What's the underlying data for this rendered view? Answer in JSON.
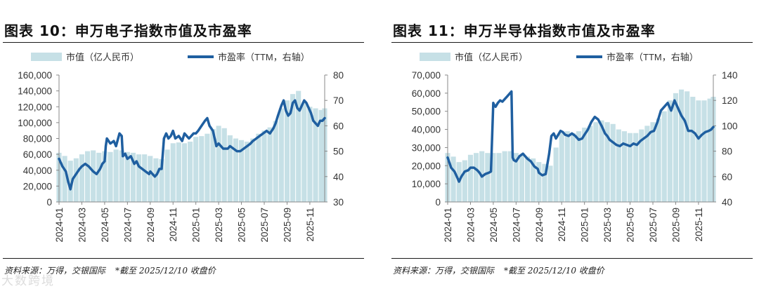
{
  "colors": {
    "bar": "#c6e0e6",
    "line": "#1f5fa0",
    "axis": "#888888",
    "text": "#333333"
  },
  "watermark": "大数跨境",
  "chart_data": [
    {
      "type": "bar+line",
      "title": "图表 10：申万电子指数市值及市盈率",
      "source": "资料来源：万得，交银国际",
      "note": "*截至 2025/12/10 收盘价",
      "legend": [
        "市值（亿人民币）",
        "市盈率（TTM，右轴）"
      ],
      "x_ticks": [
        "2024-01",
        "2024-03",
        "2024-05",
        "2024-07",
        "2024-09",
        "2024-11",
        "2025-01",
        "2025-03",
        "2025-05",
        "2025-07",
        "2025-09",
        "2025-11"
      ],
      "x_range": [
        0,
        23.3
      ],
      "left_axis": {
        "ticks": [
          "0",
          "20,000",
          "40,000",
          "60,000",
          "80,000",
          "100,000",
          "120,000",
          "140,000",
          "160,000"
        ],
        "range": [
          0,
          160000
        ]
      },
      "right_axis": {
        "ticks": [
          "30",
          "40",
          "50",
          "60",
          "70",
          "80"
        ],
        "range": [
          30,
          80
        ]
      },
      "series": [
        {
          "name": "市值（亿人民币）",
          "kind": "bar",
          "x": [
            0,
            0.5,
            1,
            1.5,
            2,
            2.5,
            3,
            3.5,
            4,
            4.5,
            5,
            5.5,
            6,
            6.5,
            7,
            7.5,
            8,
            8.5,
            9,
            9.5,
            10,
            10.5,
            11,
            11.5,
            12,
            12.5,
            13,
            13.5,
            14,
            14.5,
            15,
            15.5,
            16,
            16.5,
            17,
            17.5,
            18,
            18.5,
            19,
            19.5,
            20,
            20.5,
            21,
            21.5,
            22,
            22.5,
            23,
            23.3
          ],
          "values": [
            62000,
            58000,
            52000,
            55000,
            60000,
            64000,
            65000,
            62000,
            64000,
            63000,
            66000,
            65000,
            63000,
            62000,
            60000,
            60000,
            58000,
            55000,
            54000,
            66000,
            74000,
            75000,
            74000,
            76000,
            82000,
            83000,
            86000,
            92000,
            96000,
            93000,
            84000,
            80000,
            78000,
            76000,
            80000,
            86000,
            90000,
            94000,
            102000,
            118000,
            128000,
            136000,
            140000,
            125000,
            120000,
            118000,
            116000,
            118000
          ]
        },
        {
          "name": "市盈率（TTM，右轴）",
          "kind": "line",
          "x": [
            0,
            0.3,
            0.6,
            0.8,
            1.0,
            1.2,
            1.5,
            1.8,
            2.0,
            2.3,
            2.6,
            2.8,
            3.0,
            3.3,
            3.6,
            3.8,
            4.0,
            4.1,
            4.2,
            4.5,
            4.8,
            5.0,
            5.3,
            5.5,
            5.6,
            5.8,
            6.0,
            6.3,
            6.6,
            6.8,
            7.0,
            7.3,
            7.6,
            7.9,
            8.0,
            8.2,
            8.4,
            8.6,
            8.8,
            9.0,
            9.2,
            9.4,
            9.6,
            9.8,
            10.0,
            10.2,
            10.5,
            10.8,
            11.0,
            11.2,
            11.4,
            11.6,
            11.8,
            12.0,
            12.2,
            12.5,
            12.8,
            13.0,
            13.2,
            13.5,
            13.8,
            14.0,
            14.2,
            14.4,
            14.6,
            14.8,
            15.0,
            15.3,
            15.6,
            15.9,
            16.2,
            16.5,
            16.8,
            17.0,
            17.3,
            17.6,
            17.9,
            18.2,
            18.5,
            18.8,
            19.0,
            19.2,
            19.5,
            19.7,
            19.9,
            20.1,
            20.3,
            20.5,
            20.7,
            20.9,
            21.1,
            21.3,
            21.5,
            21.7,
            21.9,
            22.1,
            22.3,
            22.5,
            22.7,
            22.9,
            23.1,
            23.3
          ],
          "values": [
            47,
            44,
            42,
            38,
            35,
            39,
            41,
            43,
            44,
            45,
            44,
            43,
            42,
            41,
            43,
            45,
            46,
            52,
            55,
            53,
            54,
            52,
            57,
            56,
            48,
            49,
            47,
            48,
            45,
            46,
            44,
            43,
            42,
            41,
            42,
            41,
            40,
            41,
            43,
            43,
            55,
            57,
            55,
            56,
            58,
            55,
            56,
            54,
            57,
            56,
            55,
            56,
            57,
            57,
            58,
            60,
            62,
            63,
            60,
            58,
            52,
            53,
            52,
            51,
            51,
            51,
            52,
            51,
            50,
            50,
            51,
            52,
            53,
            54,
            55,
            56,
            57,
            58,
            57,
            59,
            61,
            64,
            68,
            70,
            66,
            64,
            65,
            69,
            70,
            67,
            66,
            68,
            70,
            69,
            67,
            65,
            62,
            61,
            60,
            62,
            62,
            63
          ]
        }
      ]
    },
    {
      "type": "bar+line",
      "title": "图表 11：申万半导体指数市值及市盈率",
      "source": "资料来源：万得，交银国际",
      "note": "*截至 2025/12/10 收盘价",
      "legend": [
        "市值（亿人民币）",
        "市盈率（TTM，右轴）"
      ],
      "x_ticks": [
        "2024-01",
        "2024-03",
        "2024-05",
        "2024-07",
        "2024-09",
        "2024-11",
        "2025-01",
        "2025-03",
        "2025-05",
        "2025-07",
        "2025-09",
        "2025-11"
      ],
      "x_range": [
        0,
        23.3
      ],
      "left_axis": {
        "ticks": [
          "0",
          "10,000",
          "20,000",
          "30,000",
          "40,000",
          "50,000",
          "60,000",
          "70,000"
        ],
        "range": [
          0,
          70000
        ]
      },
      "right_axis": {
        "ticks": [
          "40",
          "60",
          "80",
          "100",
          "120",
          "140"
        ],
        "range": [
          40,
          140
        ]
      },
      "series": [
        {
          "name": "市值（亿人民币）",
          "kind": "bar",
          "x": [
            0,
            0.5,
            1,
            1.5,
            2,
            2.5,
            3,
            3.5,
            4,
            4.5,
            5,
            5.5,
            6,
            6.5,
            7,
            7.5,
            8,
            8.5,
            9,
            9.5,
            10,
            10.5,
            11,
            11.5,
            12,
            12.5,
            13,
            13.5,
            14,
            14.5,
            15,
            15.5,
            16,
            16.5,
            17,
            17.5,
            18,
            18.5,
            19,
            19.5,
            20,
            20.5,
            21,
            21.5,
            22,
            22.5,
            23,
            23.3
          ],
          "values": [
            27000,
            25000,
            22000,
            23000,
            26000,
            27000,
            28000,
            27000,
            27000,
            27000,
            28000,
            28000,
            27000,
            26000,
            25000,
            24000,
            22000,
            21000,
            20000,
            30000,
            38000,
            39000,
            38000,
            39000,
            41000,
            42000,
            44000,
            45000,
            44000,
            43000,
            40000,
            39000,
            38000,
            38000,
            40000,
            42000,
            44000,
            46000,
            50000,
            56000,
            60000,
            62000,
            61000,
            58000,
            56000,
            56000,
            57000,
            58000
          ]
        },
        {
          "name": "市盈率（TTM，右轴）",
          "kind": "line",
          "x": [
            0,
            0.3,
            0.6,
            0.8,
            1.0,
            1.2,
            1.5,
            1.8,
            2.0,
            2.3,
            2.6,
            2.8,
            3.0,
            3.3,
            3.6,
            3.8,
            4.0,
            4.1,
            4.2,
            4.4,
            4.6,
            4.8,
            5.0,
            5.2,
            5.4,
            5.6,
            5.7,
            5.8,
            6.0,
            6.3,
            6.6,
            6.8,
            7.0,
            7.3,
            7.6,
            7.9,
            8.0,
            8.3,
            8.6,
            8.9,
            9.1,
            9.3,
            9.5,
            9.7,
            9.9,
            10.1,
            10.3,
            10.6,
            10.9,
            11.2,
            11.5,
            11.8,
            12.0,
            12.3,
            12.6,
            12.9,
            13.2,
            13.5,
            13.8,
            14.0,
            14.2,
            14.5,
            14.8,
            15.1,
            15.4,
            15.7,
            16.0,
            16.3,
            16.6,
            16.9,
            17.2,
            17.5,
            17.8,
            18.1,
            18.4,
            18.7,
            19.0,
            19.3,
            19.6,
            19.9,
            20.2,
            20.5,
            20.8,
            21.1,
            21.4,
            21.7,
            22.0,
            22.3,
            22.6,
            22.9,
            23.1,
            23.3
          ],
          "values": [
            75,
            67,
            64,
            60,
            56,
            60,
            64,
            65,
            67,
            67,
            65,
            63,
            60,
            62,
            63,
            64,
            118,
            116,
            115,
            118,
            120,
            119,
            121,
            123,
            125,
            127,
            75,
            73,
            72,
            76,
            78,
            76,
            74,
            72,
            68,
            66,
            63,
            61,
            62,
            78,
            92,
            94,
            90,
            93,
            96,
            95,
            93,
            92,
            94,
            92,
            89,
            90,
            93,
            97,
            103,
            107,
            105,
            100,
            94,
            92,
            89,
            87,
            85,
            84,
            86,
            85,
            84,
            86,
            85,
            88,
            90,
            92,
            95,
            96,
            103,
            112,
            115,
            118,
            112,
            120,
            114,
            108,
            104,
            96,
            96,
            94,
            90,
            93,
            95,
            96,
            97,
            99
          ]
        }
      ]
    }
  ]
}
